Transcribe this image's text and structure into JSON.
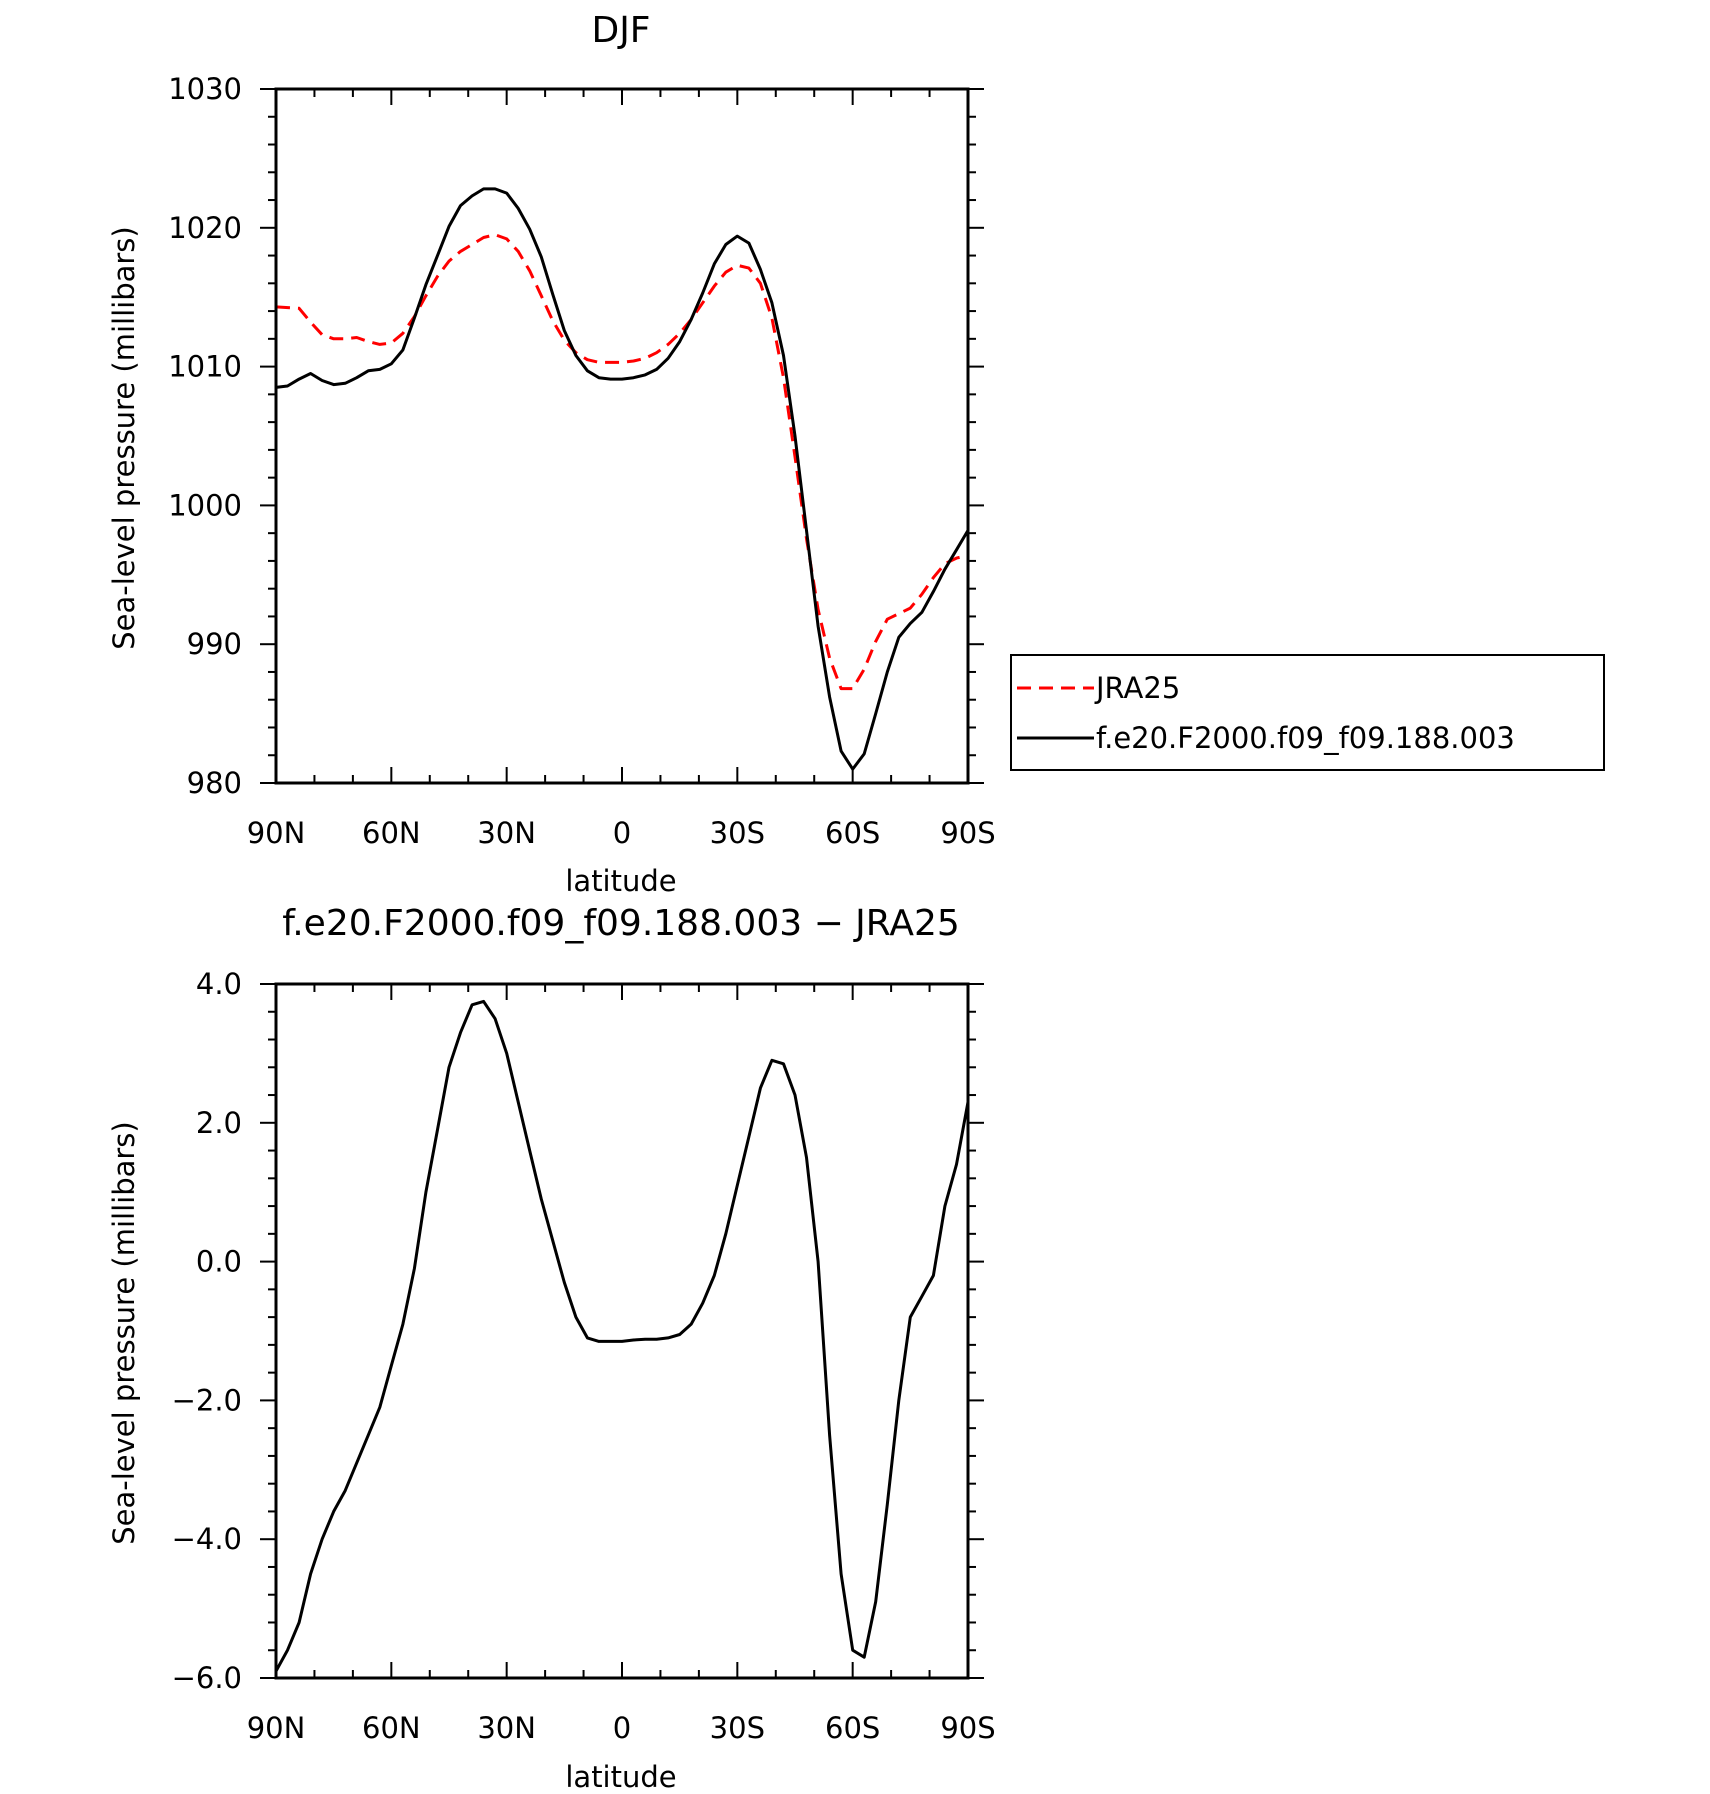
{
  "chart_data": [
    {
      "type": "line",
      "title": "DJF",
      "xlabel": "latitude",
      "ylabel": "Sea-level pressure (millibars)",
      "xlim": [
        90,
        -90
      ],
      "ylim": [
        980,
        1030
      ],
      "xticks": [
        90,
        60,
        30,
        0,
        -30,
        -60,
        -90
      ],
      "xtick_labels": [
        "90N",
        "60N",
        "30N",
        "0",
        "30S",
        "60S",
        "90S"
      ],
      "yticks": [
        980,
        990,
        1000,
        1010,
        1020,
        1030
      ],
      "ytick_labels": [
        "980",
        "990",
        "1000",
        "1010",
        "1020",
        "1030"
      ],
      "grid": false,
      "legend_position": "right",
      "series": [
        {
          "name": "JRA25",
          "color": "#ff0000",
          "style": "dashed",
          "x": [
            90,
            84,
            81,
            78,
            75,
            72,
            69,
            66,
            63,
            60,
            57,
            54,
            51,
            48,
            45,
            42,
            39,
            36,
            33,
            30,
            27,
            24,
            21,
            18,
            15,
            12,
            9,
            6,
            3,
            0,
            -3,
            -6,
            -9,
            -12,
            -15,
            -18,
            -21,
            -24,
            -27,
            -30,
            -33,
            -36,
            -39,
            -42,
            -45,
            -48,
            -51,
            -54,
            -57,
            -60,
            -63,
            -66,
            -69,
            -72,
            -75,
            -78,
            -81,
            -84,
            -87,
            -90
          ],
          "y": [
            1014.3,
            1014.2,
            1013.2,
            1012.3,
            1012.0,
            1012.0,
            1012.1,
            1011.8,
            1011.6,
            1011.7,
            1012.4,
            1013.6,
            1015.1,
            1016.5,
            1017.6,
            1018.3,
            1018.8,
            1019.3,
            1019.5,
            1019.2,
            1018.3,
            1016.9,
            1015.1,
            1013.3,
            1011.9,
            1011.0,
            1010.5,
            1010.3,
            1010.3,
            1010.3,
            1010.4,
            1010.6,
            1011.0,
            1011.6,
            1012.4,
            1013.4,
            1014.6,
            1015.8,
            1016.8,
            1017.3,
            1017.1,
            1016.0,
            1013.5,
            1009.2,
            1003.5,
            997.6,
            992.5,
            989.0,
            986.8,
            986.8,
            988.2,
            990.2,
            991.8,
            992.2,
            992.6,
            993.6,
            994.8,
            995.8,
            996.2,
            996.4
          ]
        },
        {
          "name": "f.e20.F2000.f09_f09.188.003",
          "color": "#000000",
          "style": "solid",
          "x": [
            90,
            87,
            84,
            81,
            78,
            75,
            72,
            69,
            66,
            63,
            60,
            57,
            54,
            51,
            48,
            45,
            42,
            39,
            36,
            33,
            30,
            27,
            24,
            21,
            18,
            15,
            12,
            9,
            6,
            3,
            0,
            -3,
            -6,
            -9,
            -12,
            -15,
            -18,
            -21,
            -24,
            -27,
            -30,
            -33,
            -36,
            -39,
            -42,
            -45,
            -48,
            -51,
            -54,
            -57,
            -60,
            -63,
            -66,
            -69,
            -72,
            -75,
            -78,
            -81,
            -84,
            -87,
            -90
          ],
          "y": [
            1008.5,
            1008.6,
            1009.1,
            1009.5,
            1009.0,
            1008.7,
            1008.8,
            1009.2,
            1009.7,
            1009.8,
            1010.2,
            1011.2,
            1013.5,
            1015.9,
            1018.0,
            1020.1,
            1021.6,
            1022.3,
            1022.8,
            1022.8,
            1022.5,
            1021.4,
            1019.9,
            1017.9,
            1015.2,
            1012.6,
            1010.8,
            1009.7,
            1009.2,
            1009.1,
            1009.1,
            1009.2,
            1009.4,
            1009.8,
            1010.6,
            1011.8,
            1013.4,
            1015.3,
            1017.4,
            1018.8,
            1019.4,
            1018.9,
            1017.0,
            1014.6,
            1010.8,
            1005.0,
            998.2,
            991.3,
            986.2,
            982.3,
            981.0,
            982.1,
            985.0,
            988.0,
            990.5,
            991.5,
            992.3,
            993.8,
            995.4,
            996.8,
            998.2
          ]
        }
      ]
    },
    {
      "type": "line",
      "title": "f.e20.F2000.f09_f09.188.003 − JRA25",
      "xlabel": "latitude",
      "ylabel": "Sea-level pressure (millibars)",
      "xlim": [
        90,
        -90
      ],
      "ylim": [
        -6.0,
        4.0
      ],
      "xticks": [
        90,
        60,
        30,
        0,
        -30,
        -60,
        -90
      ],
      "xtick_labels": [
        "90N",
        "60N",
        "30N",
        "0",
        "30S",
        "60S",
        "90S"
      ],
      "yticks": [
        -6.0,
        -4.0,
        -2.0,
        0.0,
        2.0,
        4.0
      ],
      "ytick_labels": [
        "−6.0",
        "−4.0",
        "−2.0",
        "0.0",
        "2.0",
        "4.0"
      ],
      "grid": false,
      "series": [
        {
          "color": "#000000",
          "style": "solid",
          "x": [
            90,
            87,
            84,
            81,
            78,
            75,
            72,
            69,
            66,
            63,
            60,
            57,
            54,
            51,
            48,
            45,
            42,
            39,
            36,
            33,
            30,
            27,
            24,
            21,
            18,
            15,
            12,
            9,
            6,
            3,
            0,
            -3,
            -6,
            -9,
            -12,
            -15,
            -18,
            -21,
            -24,
            -27,
            -30,
            -33,
            -36,
            -39,
            -42,
            -45,
            -48,
            -51,
            -54,
            -57,
            -60,
            -63,
            -66,
            -69,
            -72,
            -75,
            -78,
            -81,
            -84,
            -87,
            -90
          ],
          "y": [
            -5.9,
            -5.6,
            -5.2,
            -4.5,
            -4.0,
            -3.6,
            -3.3,
            -2.9,
            -2.5,
            -2.1,
            -1.5,
            -0.9,
            -0.1,
            1.0,
            1.9,
            2.8,
            3.3,
            3.7,
            3.75,
            3.5,
            3.0,
            2.3,
            1.6,
            0.9,
            0.3,
            -0.3,
            -0.8,
            -1.1,
            -1.15,
            -1.15,
            -1.15,
            -1.13,
            -1.12,
            -1.12,
            -1.1,
            -1.05,
            -0.9,
            -0.6,
            -0.2,
            0.4,
            1.1,
            1.8,
            2.5,
            2.9,
            2.85,
            2.4,
            1.5,
            0.0,
            -2.5,
            -4.5,
            -5.6,
            -5.7,
            -4.9,
            -3.5,
            -2.0,
            -0.8,
            -0.5,
            -0.2,
            0.8,
            1.4,
            2.3
          ]
        }
      ]
    }
  ]
}
